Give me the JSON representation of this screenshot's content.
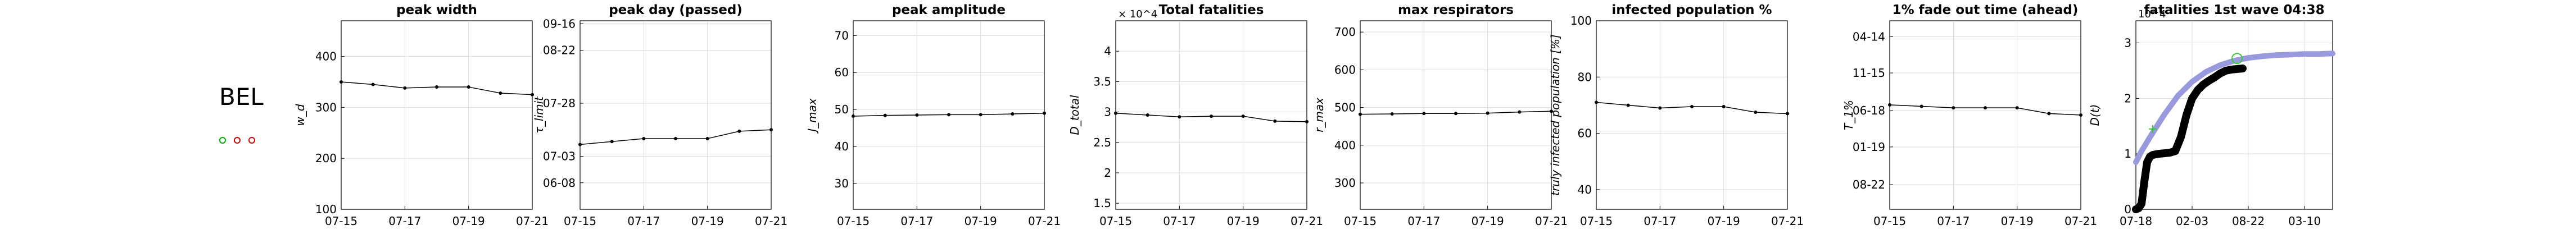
{
  "country": "BEL",
  "markers": [
    {
      "name": "green-circle",
      "color": "#00b000"
    },
    {
      "name": "red-circle-1",
      "color": "#d00000"
    },
    {
      "name": "red-circle-2",
      "color": "#d00000"
    }
  ],
  "chart_data": [
    {
      "type": "line",
      "title": "peak width",
      "ylabel": "w_d",
      "x": [
        "07-15",
        "07-16",
        "07-17",
        "07-18",
        "07-19",
        "07-20",
        "07-21"
      ],
      "xticks": [
        "07-15",
        "07-17",
        "07-19",
        "07-21"
      ],
      "ylim": [
        100,
        470
      ],
      "yticks": [
        100,
        200,
        300,
        400
      ],
      "ytick_labels": [
        "100",
        "200",
        "300",
        "400"
      ],
      "grid": true,
      "series": [
        {
          "values": [
            350,
            345,
            338,
            340,
            340,
            328,
            325
          ]
        }
      ]
    },
    {
      "type": "line",
      "title": "peak day (passed)",
      "ylabel": "τ_limit",
      "x": [
        "07-15",
        "07-16",
        "07-17",
        "07-18",
        "07-19",
        "07-20",
        "07-21"
      ],
      "xticks": [
        "07-15",
        "07-17",
        "07-19",
        "07-21"
      ],
      "ylim": [
        0,
        64
      ],
      "yticks": [
        9,
        18,
        36,
        54,
        63
      ],
      "ytick_labels": [
        "06-08",
        "07-03",
        "07-28",
        "08-22",
        "09-16"
      ],
      "grid": true,
      "series": [
        {
          "values": [
            22,
            23,
            24,
            24,
            24,
            26.5,
            27
          ]
        }
      ]
    },
    {
      "type": "line",
      "title": "peak amplitude",
      "ylabel": "J_max",
      "x": [
        "07-15",
        "07-16",
        "07-17",
        "07-18",
        "07-19",
        "07-20",
        "07-21"
      ],
      "xticks": [
        "07-15",
        "07-17",
        "07-19",
        "07-21"
      ],
      "ylim": [
        23,
        74
      ],
      "yticks": [
        30,
        40,
        50,
        60,
        70
      ],
      "ytick_labels": [
        "30",
        "40",
        "50",
        "60",
        "70"
      ],
      "grid": true,
      "series": [
        {
          "values": [
            48.2,
            48.4,
            48.5,
            48.6,
            48.6,
            48.8,
            49.0
          ]
        }
      ]
    },
    {
      "type": "line",
      "title": "Total fatalities",
      "ylabel": "D_total",
      "exponent_label": "× 10^4",
      "x": [
        "07-15",
        "07-16",
        "07-17",
        "07-18",
        "07-19",
        "07-20",
        "07-21"
      ],
      "xticks": [
        "07-15",
        "07-17",
        "07-19",
        "07-21"
      ],
      "ylim": [
        1.4,
        4.5
      ],
      "yticks": [
        1.5,
        2,
        2.5,
        3,
        3.5,
        4
      ],
      "ytick_labels": [
        "1.5",
        "2",
        "2.5",
        "3",
        "3.5",
        "4"
      ],
      "grid": true,
      "series": [
        {
          "values": [
            2.98,
            2.95,
            2.92,
            2.93,
            2.93,
            2.85,
            2.84
          ]
        }
      ]
    },
    {
      "type": "line",
      "title": "max respirators",
      "ylabel": "r_max",
      "x": [
        "07-15",
        "07-16",
        "07-17",
        "07-18",
        "07-19",
        "07-20",
        "07-21"
      ],
      "xticks": [
        "07-15",
        "07-17",
        "07-19",
        "07-21"
      ],
      "ylim": [
        230,
        730
      ],
      "yticks": [
        300,
        400,
        500,
        600,
        700
      ],
      "ytick_labels": [
        "300",
        "400",
        "500",
        "600",
        "700"
      ],
      "grid": true,
      "series": [
        {
          "values": [
            482,
            483,
            484,
            484,
            485,
            488,
            490
          ]
        }
      ]
    },
    {
      "type": "line",
      "title": "infected population %",
      "ylabel": "truly infected population [%]",
      "x": [
        "07-15",
        "07-16",
        "07-17",
        "07-18",
        "07-19",
        "07-20",
        "07-21"
      ],
      "xticks": [
        "07-15",
        "07-17",
        "07-19",
        "07-21"
      ],
      "ylim": [
        33,
        100
      ],
      "yticks": [
        40,
        60,
        80,
        100
      ],
      "ytick_labels": [
        "40",
        "60",
        "80",
        "100"
      ],
      "grid": true,
      "series": [
        {
          "values": [
            71,
            70,
            69,
            69.5,
            69.5,
            67.5,
            67
          ]
        }
      ]
    },
    {
      "type": "line",
      "title": "1% fade out time (ahead)",
      "ylabel": "T_1%",
      "x": [
        "07-15",
        "07-16",
        "07-17",
        "07-18",
        "07-19",
        "07-20",
        "07-21"
      ],
      "xticks": [
        "07-15",
        "07-17",
        "07-19",
        "07-21"
      ],
      "ylim": [
        0,
        130
      ],
      "yticks": [
        17,
        43,
        68,
        94,
        119
      ],
      "ytick_labels": [
        "08-22",
        "01-19",
        "06-18",
        "11-15",
        "04-14"
      ],
      "grid": true,
      "series": [
        {
          "values": [
            72,
            71,
            70,
            70,
            70,
            66,
            65
          ]
        }
      ]
    },
    {
      "type": "line",
      "title": "fatalities 1st wave 04:38",
      "ylabel": "D(t)",
      "exponent_label": "10^4",
      "x_start": 0,
      "xticks": [
        0,
        200,
        400,
        600
      ],
      "xtick_labels": [
        "07-18",
        "02-03",
        "08-22",
        "03-10"
      ],
      "xlim": [
        0,
        700
      ],
      "ylim": [
        0,
        3.4
      ],
      "yticks": [
        0,
        1,
        2,
        3
      ],
      "ytick_labels": [
        "0",
        "1",
        "2",
        "3"
      ],
      "grid": true,
      "series": [
        {
          "color": "#9999dd",
          "x": [
            0,
            20,
            50,
            100,
            150,
            200,
            250,
            300,
            350,
            400,
            450,
            500,
            550,
            600,
            650,
            700
          ],
          "values": [
            0.85,
            1.05,
            1.3,
            1.7,
            2.05,
            2.3,
            2.48,
            2.6,
            2.68,
            2.73,
            2.76,
            2.78,
            2.79,
            2.8,
            2.8,
            2.81
          ]
        },
        {
          "color": "#000000",
          "x": [
            0,
            10,
            20,
            30,
            40,
            50,
            60,
            80,
            100,
            120,
            140,
            160,
            180,
            200,
            220,
            240,
            260,
            280,
            300,
            320,
            340,
            360,
            380
          ],
          "values": [
            0,
            0.02,
            0.1,
            0.5,
            0.85,
            0.95,
            0.98,
            1.0,
            1.01,
            1.02,
            1.05,
            1.3,
            1.7,
            2.0,
            2.15,
            2.25,
            2.32,
            2.38,
            2.45,
            2.5,
            2.52,
            2.53,
            2.54
          ]
        }
      ],
      "annotations": [
        {
          "type": "circle",
          "color": "#33cc33",
          "x": 360,
          "y": 2.72
        },
        {
          "type": "star",
          "color": "#33cc33",
          "x": 60,
          "y": 1.45
        }
      ]
    }
  ]
}
